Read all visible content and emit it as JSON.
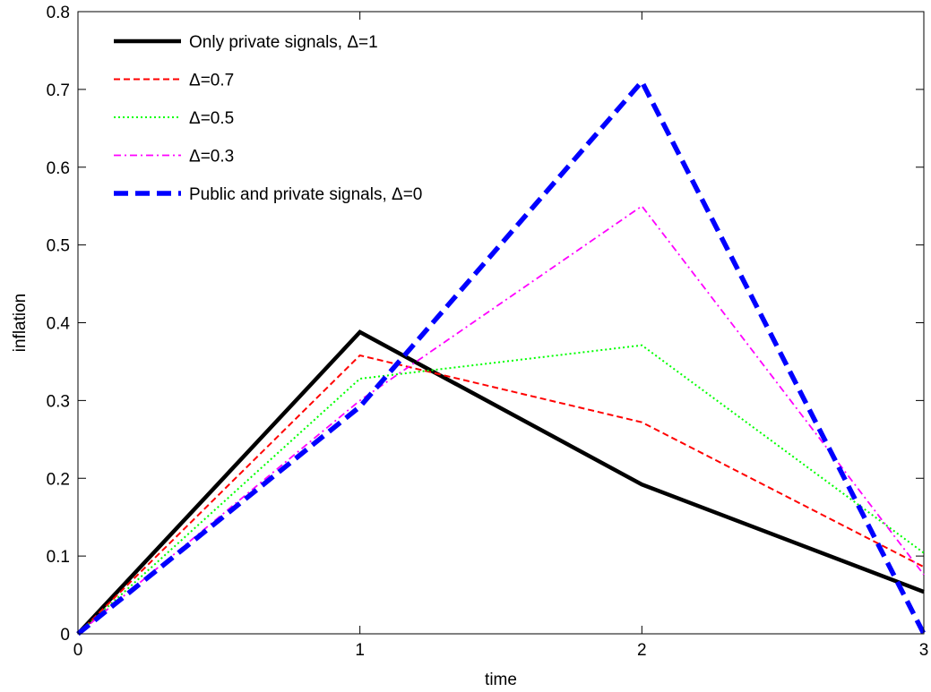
{
  "chart_data": {
    "type": "line",
    "title": "",
    "xlabel": "time",
    "ylabel": "inflation",
    "x": [
      0,
      1,
      2,
      3
    ],
    "xlim": [
      0,
      3
    ],
    "ylim": [
      0,
      0.8
    ],
    "xticks": [
      "0",
      "1",
      "2",
      "3"
    ],
    "yticks": [
      "0",
      "0.1",
      "0.2",
      "0.3",
      "0.4",
      "0.5",
      "0.6",
      "0.7",
      "0.8"
    ],
    "grid": false,
    "legend_position": "top-left",
    "series": [
      {
        "name": "Only private signals, Δ=1",
        "values": [
          0,
          0.388,
          0.192,
          0.054
        ],
        "color": "#000000",
        "style": "solid"
      },
      {
        "name": "Δ=0.7",
        "values": [
          0,
          0.358,
          0.272,
          0.086
        ],
        "color": "#ff0000",
        "style": "dashed"
      },
      {
        "name": "Δ=0.5",
        "values": [
          0,
          0.328,
          0.371,
          0.104
        ],
        "color": "#00ff00",
        "style": "dotted"
      },
      {
        "name": "Δ=0.3",
        "values": [
          0,
          0.3,
          0.55,
          0.076
        ],
        "color": "#ff00ff",
        "style": "dashdot"
      },
      {
        "name": "Public and private signals, Δ=0",
        "values": [
          0,
          0.292,
          0.71,
          0.0
        ],
        "color": "#0000ff",
        "style": "dashed-bold"
      }
    ]
  }
}
